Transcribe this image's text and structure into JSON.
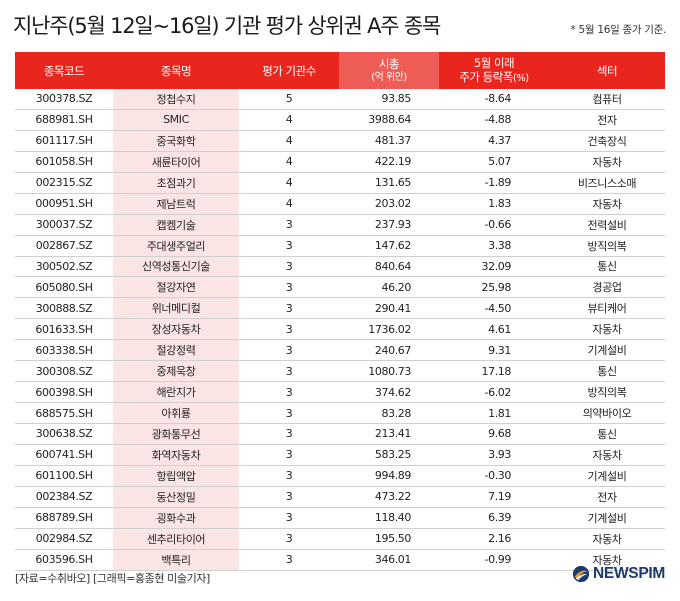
{
  "title": "지난주(5월 12일~16일) 기관 평가 상위권 A주 종목",
  "note": "* 5월 16일 종가 기준.",
  "headers": {
    "code": "종목코드",
    "name": "종목명",
    "count": "평가 기관수",
    "cap": "시총",
    "cap_unit": "(억 위안)",
    "change_line1": "5월 이래",
    "change_line2": "주가 등락폭",
    "change_unit": "(%)",
    "sector": "섹터"
  },
  "rows": [
    {
      "code": "300378.SZ",
      "name": "정첩수지",
      "count": "5",
      "cap": "93.85",
      "change": "-8.64",
      "sector": "컴퓨터"
    },
    {
      "code": "688981.SH",
      "name": "SMIC",
      "count": "4",
      "cap": "3988.64",
      "change": "-4.88",
      "sector": "전자"
    },
    {
      "code": "601117.SH",
      "name": "중국화학",
      "count": "4",
      "cap": "481.37",
      "change": "4.37",
      "sector": "건축장식"
    },
    {
      "code": "601058.SH",
      "name": "새륜타이어",
      "count": "4",
      "cap": "422.19",
      "change": "5.07",
      "sector": "자동차"
    },
    {
      "code": "002315.SZ",
      "name": "초점과기",
      "count": "4",
      "cap": "131.65",
      "change": "-1.89",
      "sector": "비즈니스소매"
    },
    {
      "code": "000951.SH",
      "name": "제남트럭",
      "count": "4",
      "cap": "203.02",
      "change": "1.83",
      "sector": "자동차"
    },
    {
      "code": "300037.SZ",
      "name": "캡켐기술",
      "count": "3",
      "cap": "237.93",
      "change": "-0.66",
      "sector": "전력설비"
    },
    {
      "code": "002867.SZ",
      "name": "주대생주얼리",
      "count": "3",
      "cap": "147.62",
      "change": "3.38",
      "sector": "방직의복"
    },
    {
      "code": "300502.SZ",
      "name": "신역성통신기술",
      "count": "3",
      "cap": "840.64",
      "change": "32.09",
      "sector": "통신"
    },
    {
      "code": "605080.SH",
      "name": "절강자연",
      "count": "3",
      "cap": "46.20",
      "change": "25.98",
      "sector": "경공업"
    },
    {
      "code": "300888.SZ",
      "name": "위너메디컬",
      "count": "3",
      "cap": "290.41",
      "change": "-4.50",
      "sector": "뷰티케어"
    },
    {
      "code": "601633.SH",
      "name": "장성자동차",
      "count": "3",
      "cap": "1736.02",
      "change": "4.61",
      "sector": "자동차"
    },
    {
      "code": "603338.SH",
      "name": "절강정력",
      "count": "3",
      "cap": "240.67",
      "change": "9.31",
      "sector": "기계설비"
    },
    {
      "code": "300308.SZ",
      "name": "중제욱창",
      "count": "3",
      "cap": "1080.73",
      "change": "17.18",
      "sector": "통신"
    },
    {
      "code": "600398.SH",
      "name": "해란지가",
      "count": "3",
      "cap": "374.62",
      "change": "-6.02",
      "sector": "방직의복"
    },
    {
      "code": "688575.SH",
      "name": "아휘룡",
      "count": "3",
      "cap": "83.28",
      "change": "1.81",
      "sector": "의약바이오"
    },
    {
      "code": "300638.SZ",
      "name": "광화통무선",
      "count": "3",
      "cap": "213.41",
      "change": "9.68",
      "sector": "통신"
    },
    {
      "code": "600741.SH",
      "name": "화역자동차",
      "count": "3",
      "cap": "583.25",
      "change": "3.93",
      "sector": "자동차"
    },
    {
      "code": "601100.SH",
      "name": "항립액압",
      "count": "3",
      "cap": "994.89",
      "change": "-0.30",
      "sector": "기계설비"
    },
    {
      "code": "002384.SZ",
      "name": "동산정밀",
      "count": "3",
      "cap": "473.22",
      "change": "7.19",
      "sector": "전자"
    },
    {
      "code": "688789.SH",
      "name": "굉화수과",
      "count": "3",
      "cap": "118.40",
      "change": "6.39",
      "sector": "기계설비"
    },
    {
      "code": "002984.SZ",
      "name": "센추리타이어",
      "count": "3",
      "cap": "195.50",
      "change": "2.16",
      "sector": "자동차"
    },
    {
      "code": "603596.SH",
      "name": "백특리",
      "count": "3",
      "cap": "346.01",
      "change": "-0.99",
      "sector": "자동차"
    }
  ],
  "source": "[자료=수취바오] [그래픽=홍종현 미술기자]",
  "brand": "NEWSPIM",
  "colors": {
    "header": "#e8261e",
    "header_highlight": "#ee5d55",
    "name_column": "#fbe4e4",
    "brand": "#1f3b6e"
  }
}
